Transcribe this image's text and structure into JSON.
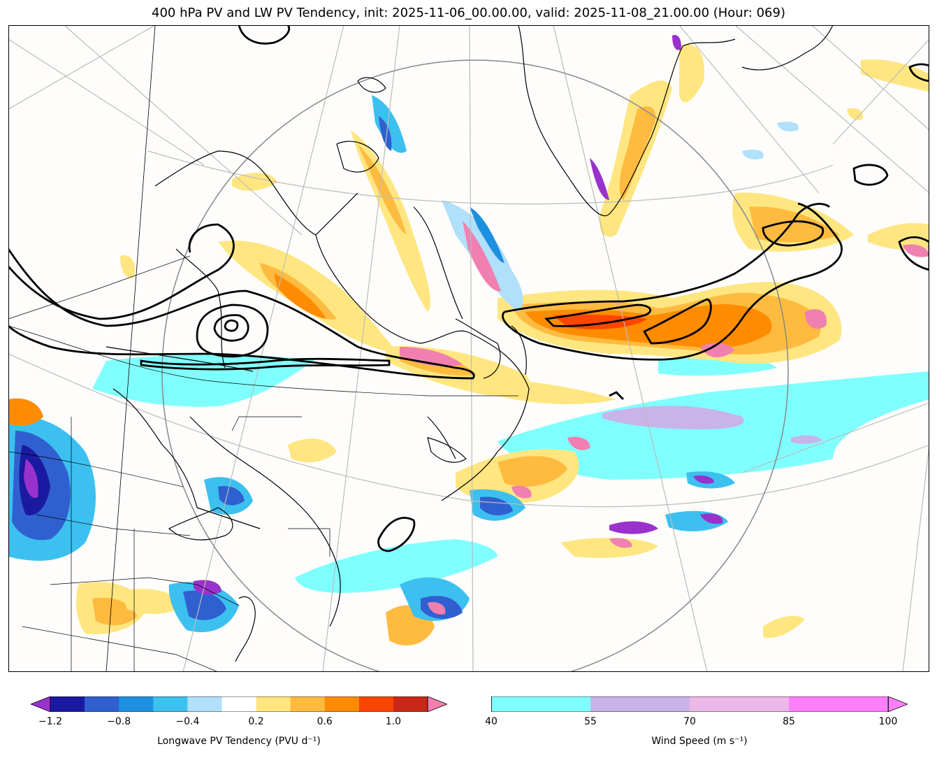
{
  "title": "400 hPa PV and LW PV Tendency, init: 2025-11-06_00.00.00, valid: 2025-11-08_21.00.00 (Hour: 069)",
  "colors": {
    "ocean_bg": "#fefdfb",
    "pv_contour": "#000000",
    "coast": "#000000",
    "graticule": "#bbbbbb",
    "circle": "#888888",
    "wind": [
      "#80ffff",
      "#c8b4e8",
      "#ecb8e8",
      "#ff80ff"
    ],
    "pvtend": [
      "#9932cc",
      "#1a1aa0",
      "#3060d0",
      "#1e90e0",
      "#3cc0f0",
      "#b0e0fa",
      "#ffffff",
      "#ffe680",
      "#ffbb40",
      "#ff8c00",
      "#ff4500",
      "#c82818",
      "#f080b0"
    ]
  },
  "colorbar_pv": {
    "label": "Longwave PV Tendency (PVU d⁻¹)",
    "ticks": [
      "−1.2",
      "−0.8",
      "−0.4",
      "0.2",
      "0.6",
      "1.0"
    ],
    "levels": [
      -1.2,
      -1.0,
      -0.8,
      -0.6,
      -0.4,
      -0.2,
      0.2,
      0.4,
      0.6,
      0.8,
      1.0,
      1.2
    ]
  },
  "colorbar_wind": {
    "label": "Wind Speed (m s⁻¹)",
    "ticks": [
      "40",
      "55",
      "70",
      "85",
      "100"
    ],
    "levels": [
      40,
      55,
      70,
      85,
      100
    ]
  }
}
